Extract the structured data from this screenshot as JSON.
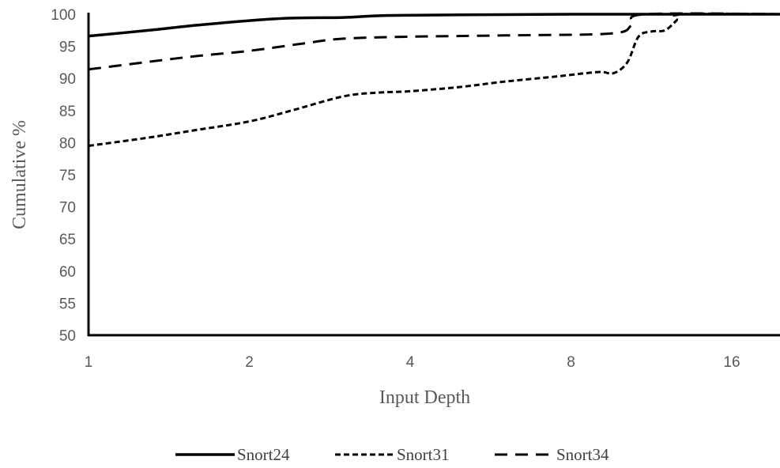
{
  "chart_data": {
    "type": "line",
    "title": "",
    "xlabel": "Input Depth",
    "ylabel": "Cumulative %",
    "x_scale": "log2",
    "xlim": [
      1,
      20
    ],
    "ylim": [
      50,
      100
    ],
    "x_ticks": [
      1,
      2,
      4,
      8,
      16
    ],
    "x_tick_labels": [
      "1",
      "2",
      "4",
      "8",
      "16"
    ],
    "y_ticks": [
      50,
      55,
      60,
      65,
      70,
      75,
      80,
      85,
      90,
      95,
      100
    ],
    "y_tick_labels": [
      "50",
      "55",
      "60",
      "65",
      "70",
      "75",
      "80",
      "85",
      "90",
      "95",
      "100"
    ],
    "grid": false,
    "legend_position": "bottom",
    "series": [
      {
        "name": "Snort24",
        "line_style": "solid",
        "color": "#000000",
        "points": [
          [
            1,
            96.6
          ],
          [
            1.3,
            97.5
          ],
          [
            1.6,
            98.3
          ],
          [
            2,
            99.0
          ],
          [
            2.4,
            99.4
          ],
          [
            3,
            99.5
          ],
          [
            3.6,
            99.8
          ],
          [
            5,
            99.9
          ],
          [
            8,
            100
          ],
          [
            20,
            100
          ]
        ]
      },
      {
        "name": "Snort31",
        "line_style": "short-dash",
        "color": "#000000",
        "points": [
          [
            1,
            79.5
          ],
          [
            1.3,
            80.8
          ],
          [
            1.6,
            82.0
          ],
          [
            2,
            83.3
          ],
          [
            2.4,
            85.0
          ],
          [
            3,
            87.2
          ],
          [
            3.5,
            87.8
          ],
          [
            4,
            88.0
          ],
          [
            5,
            88.7
          ],
          [
            6,
            89.5
          ],
          [
            7.5,
            90.3
          ],
          [
            9,
            91.0
          ],
          [
            9.6,
            90.8
          ],
          [
            10.2,
            92.5
          ],
          [
            10.7,
            96.5
          ],
          [
            11.3,
            97.3
          ],
          [
            12,
            97.5
          ],
          [
            12.6,
            99.0
          ],
          [
            13,
            100
          ],
          [
            20,
            100
          ]
        ]
      },
      {
        "name": "Snort34",
        "line_style": "long-dash",
        "color": "#000000",
        "points": [
          [
            1,
            91.4
          ],
          [
            1.3,
            92.6
          ],
          [
            1.6,
            93.5
          ],
          [
            2,
            94.3
          ],
          [
            2.5,
            95.4
          ],
          [
            3,
            96.2
          ],
          [
            4,
            96.5
          ],
          [
            6,
            96.7
          ],
          [
            9.5,
            97.0
          ],
          [
            10.4,
            98.3
          ],
          [
            11,
            100
          ],
          [
            20,
            100
          ]
        ]
      }
    ]
  }
}
